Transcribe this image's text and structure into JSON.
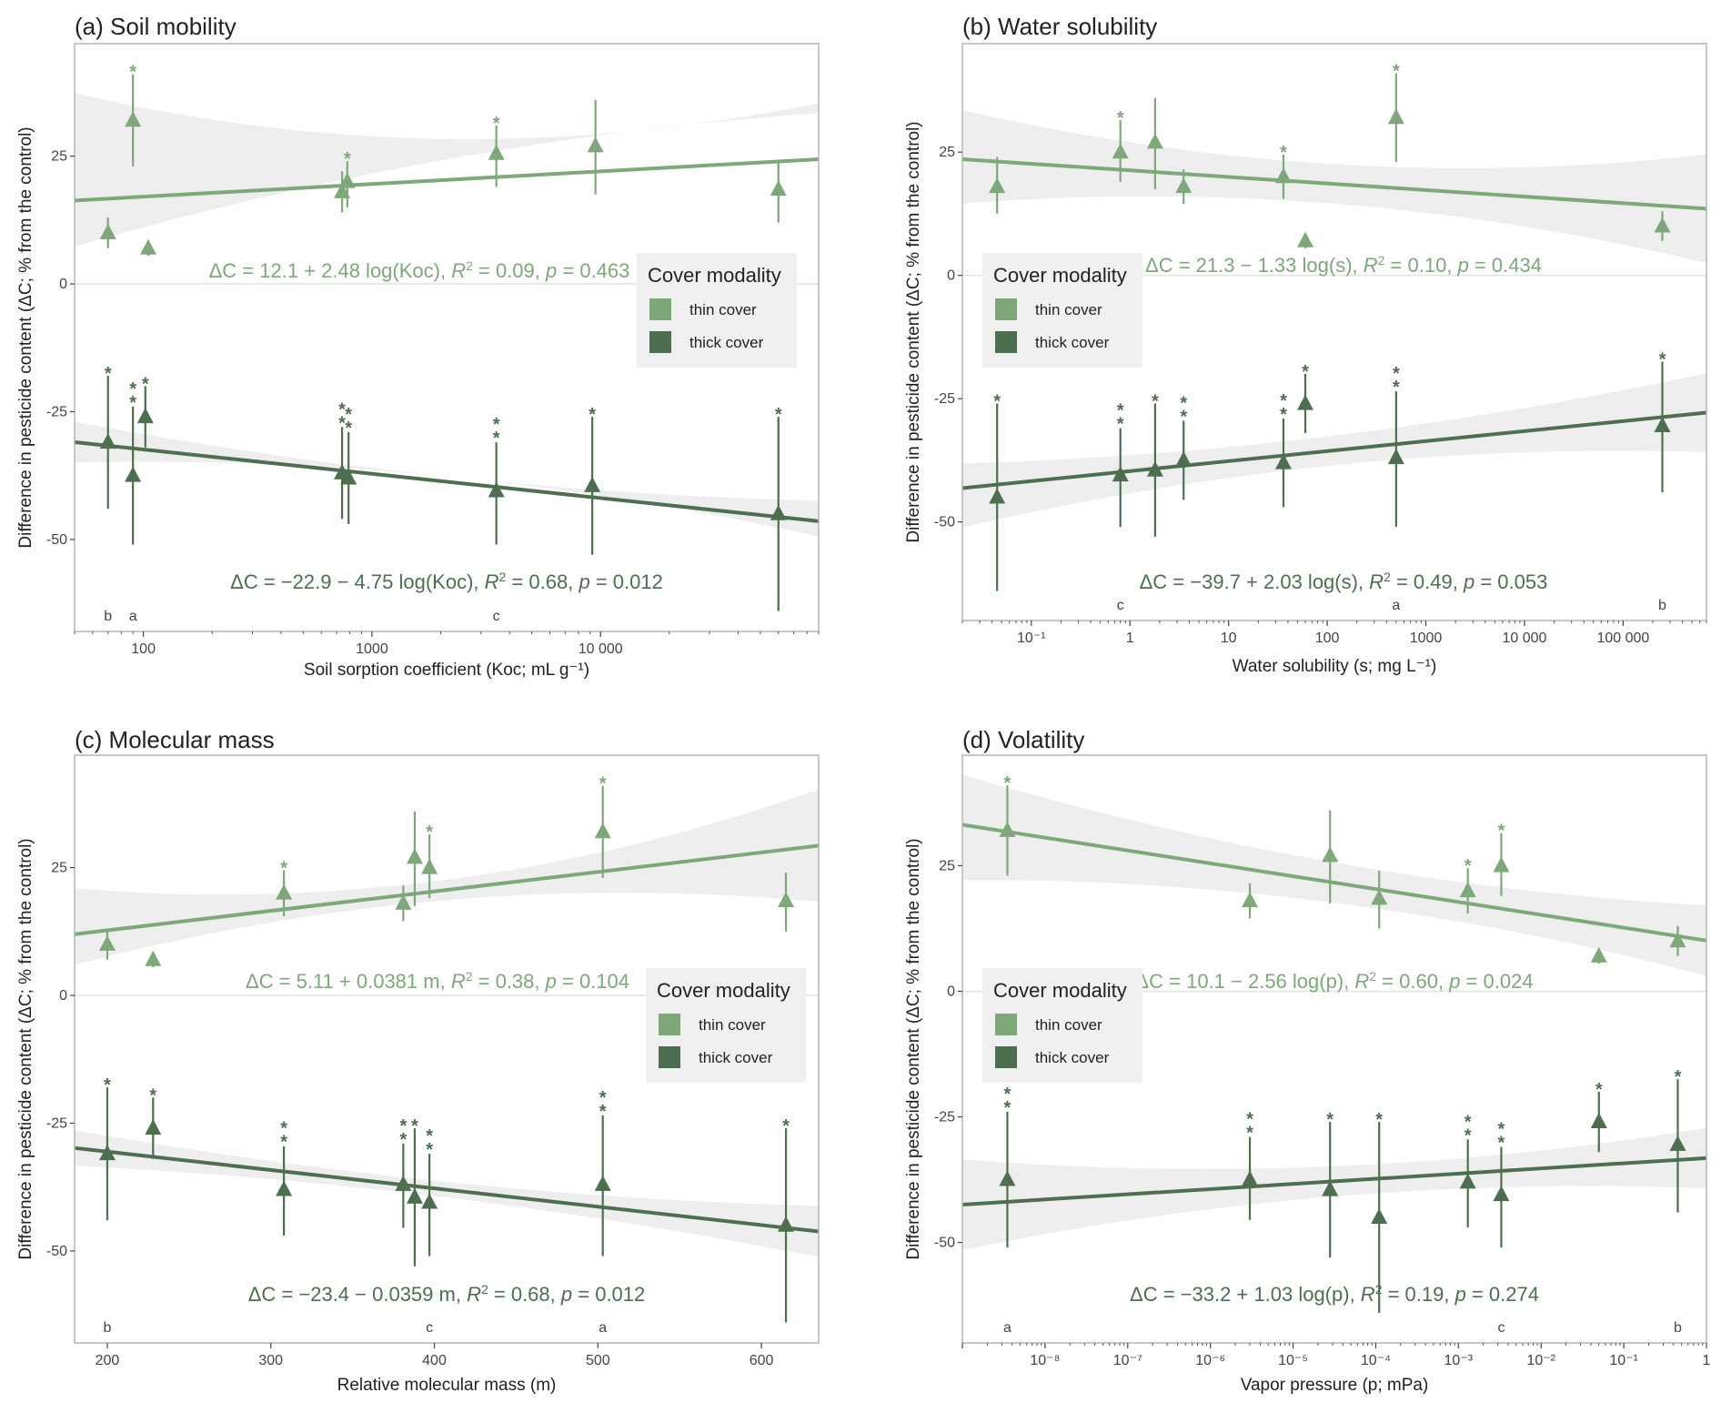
{
  "colors": {
    "thin": "#7ea87a",
    "thick": "#4e6e50",
    "band": "#ebebeb",
    "frame": "#b5b5b5",
    "zero": "#e2e2e2"
  },
  "legend": {
    "title": "Cover modality",
    "items": [
      "thin cover",
      "thick cover"
    ]
  },
  "chart_data": [
    {
      "type": "scatter",
      "title": "(a) Soil mobility",
      "xlabel": "Soil sorption coefficient (Koc; mL g⁻¹)",
      "ylabel": "Difference in pesticide content (ΔC; % from the control)",
      "xscale": "log",
      "xlim": [
        50,
        90000
      ],
      "ylim": [
        -68,
        47
      ],
      "xticks": [
        {
          "v": 100,
          "label": "100"
        },
        {
          "v": 1000,
          "label": "1000"
        },
        {
          "v": 10000,
          "label": "10 000"
        }
      ],
      "yticks": [
        {
          "v": 25,
          "label": "25"
        },
        {
          "v": 0,
          "label": "0"
        },
        {
          "v": -25,
          "label": "-25"
        },
        {
          "v": -50,
          "label": "-50"
        }
      ],
      "legend_position": "right",
      "letters": [
        {
          "x": 70,
          "label": "b"
        },
        {
          "x": 90,
          "label": "a"
        },
        {
          "x": 3500,
          "label": "c"
        }
      ],
      "series": [
        {
          "name": "thin cover",
          "equation": "ΔC = 12.1 + 2.48 log(Koc), R² = 0.09, p = 0.463",
          "fit": {
            "a": 12.1,
            "b": 2.48,
            "band_lo": [
              9,
              -4,
              -9
            ],
            "band_hi": [
              21,
              8,
              11
            ]
          },
          "points": [
            {
              "x": 70,
              "y": 10,
              "lo": 7,
              "hi": 13,
              "stars": 0
            },
            {
              "x": 90,
              "y": 32,
              "lo": 23,
              "hi": 41,
              "stars": 1
            },
            {
              "x": 105,
              "y": 7,
              "lo": 5.5,
              "hi": 8.5,
              "stars": 0
            },
            {
              "x": 740,
              "y": 18,
              "lo": 14,
              "hi": 22,
              "stars": 0
            },
            {
              "x": 780,
              "y": 20,
              "lo": 15,
              "hi": 24,
              "stars": 1
            },
            {
              "x": 3500,
              "y": 25.5,
              "lo": 19,
              "hi": 31,
              "stars": 1
            },
            {
              "x": 9500,
              "y": 27,
              "lo": 17.5,
              "hi": 36,
              "stars": 0
            },
            {
              "x": 60000,
              "y": 18.5,
              "lo": 12,
              "hi": 24,
              "stars": 0
            }
          ]
        },
        {
          "name": "thick cover",
          "equation": "ΔC = −22.9 − 4.75 log(Koc), R² = 0.68, p = 0.012",
          "fit": {
            "a": -22.9,
            "b": -4.75,
            "band_lo": [
              4,
              -1,
              3
            ],
            "band_hi": [
              4,
              1,
              4
            ]
          },
          "points": [
            {
              "x": 70,
              "y": -31,
              "lo": -44,
              "hi": -18,
              "stars": 1
            },
            {
              "x": 90,
              "y": -37.5,
              "lo": -51,
              "hi": -24,
              "stars": 2
            },
            {
              "x": 102,
              "y": -26,
              "lo": -32,
              "hi": -20,
              "stars": 1
            },
            {
              "x": 740,
              "y": -37,
              "lo": -46,
              "hi": -28,
              "stars": 2
            },
            {
              "x": 790,
              "y": -38,
              "lo": -47,
              "hi": -29,
              "stars": 2
            },
            {
              "x": 3500,
              "y": -40.5,
              "lo": -51,
              "hi": -31,
              "stars": 2
            },
            {
              "x": 9200,
              "y": -39.5,
              "lo": -53,
              "hi": -26,
              "stars": 1
            },
            {
              "x": 60000,
              "y": -45,
              "lo": -64,
              "hi": -26,
              "stars": 1
            }
          ]
        }
      ]
    },
    {
      "type": "scatter",
      "title": "(b) Water solubility",
      "xlabel": "Water solubility (s; mg L⁻¹)",
      "ylabel": "Difference in pesticide content (ΔC; % from the control)",
      "xscale": "log",
      "xlim": [
        0.02,
        700000
      ],
      "ylim": [
        -70,
        47
      ],
      "xticks": [
        {
          "v": 0.1,
          "label": "10⁻¹"
        },
        {
          "v": 1,
          "label": "1"
        },
        {
          "v": 10,
          "label": "10"
        },
        {
          "v": 100,
          "label": "100"
        },
        {
          "v": 1000,
          "label": "1000"
        },
        {
          "v": 10000,
          "label": "10 000"
        },
        {
          "v": 100000,
          "label": "100 000"
        }
      ],
      "yticks": [
        {
          "v": 25,
          "label": "25"
        },
        {
          "v": 0,
          "label": "0"
        },
        {
          "v": -25,
          "label": "-25"
        },
        {
          "v": -50,
          "label": "-50"
        }
      ],
      "legend_position": "left",
      "letters": [
        {
          "x": 0.8,
          "label": "c"
        },
        {
          "x": 500,
          "label": "a"
        },
        {
          "x": 250000,
          "label": "b"
        }
      ],
      "series": [
        {
          "name": "thin cover",
          "equation": "ΔC = 21.3 − 1.33 log(s), R² = 0.10, p = 0.434",
          "fit": {
            "a": 21.3,
            "b": -1.33,
            "band_lo": [
              9,
              4,
              11
            ],
            "band_hi": [
              10,
              4,
              11
            ]
          },
          "points": [
            {
              "x": 0.045,
              "y": 18,
              "lo": 12.5,
              "hi": 24,
              "stars": 0
            },
            {
              "x": 0.8,
              "y": 25,
              "lo": 19,
              "hi": 31.5,
              "stars": 1
            },
            {
              "x": 1.8,
              "y": 27,
              "lo": 17.5,
              "hi": 36,
              "stars": 0
            },
            {
              "x": 3.5,
              "y": 18,
              "lo": 14.5,
              "hi": 21.5,
              "stars": 0
            },
            {
              "x": 36,
              "y": 20,
              "lo": 15.5,
              "hi": 24.5,
              "stars": 1
            },
            {
              "x": 60,
              "y": 7,
              "lo": 5.5,
              "hi": 8.5,
              "stars": 0
            },
            {
              "x": 500,
              "y": 32,
              "lo": 23,
              "hi": 41,
              "stars": 1
            },
            {
              "x": 250000,
              "y": 10,
              "lo": 7,
              "hi": 13,
              "stars": 0
            }
          ]
        },
        {
          "name": "thick cover",
          "equation": "ΔC = −39.7 + 2.03 log(s), R² = 0.49, p = 0.053",
          "fit": {
            "a": -39.7,
            "b": 2.03,
            "band_lo": [
              8,
              3,
              8
            ],
            "band_hi": [
              5,
              3,
              8
            ]
          },
          "points": [
            {
              "x": 0.045,
              "y": -45,
              "lo": -64,
              "hi": -26,
              "stars": 1
            },
            {
              "x": 0.8,
              "y": -40.5,
              "lo": -51,
              "hi": -31,
              "stars": 2
            },
            {
              "x": 1.8,
              "y": -39.5,
              "lo": -53,
              "hi": -26,
              "stars": 1
            },
            {
              "x": 3.5,
              "y": -37.5,
              "lo": -45.5,
              "hi": -29.5,
              "stars": 2
            },
            {
              "x": 36,
              "y": -38,
              "lo": -47,
              "hi": -29,
              "stars": 2
            },
            {
              "x": 60,
              "y": -26,
              "lo": -32,
              "hi": -20,
              "stars": 1
            },
            {
              "x": 500,
              "y": -37,
              "lo": -51,
              "hi": -23.5,
              "stars": 2
            },
            {
              "x": 250000,
              "y": -30.5,
              "lo": -44,
              "hi": -17.5,
              "stars": 1
            }
          ]
        }
      ]
    },
    {
      "type": "scatter",
      "title": "(c) Molecular mass",
      "xlabel": "Relative molecular mass (m)",
      "ylabel": "Difference in pesticide content (ΔC; % from the control)",
      "xscale": "linear",
      "xlim": [
        180,
        635
      ],
      "ylim": [
        -68,
        47
      ],
      "xticks": [
        {
          "v": 200,
          "label": "200"
        },
        {
          "v": 300,
          "label": "300"
        },
        {
          "v": 400,
          "label": "400"
        },
        {
          "v": 500,
          "label": "500"
        },
        {
          "v": 600,
          "label": "600"
        }
      ],
      "yticks": [
        {
          "v": 25,
          "label": "25"
        },
        {
          "v": 0,
          "label": "0"
        },
        {
          "v": -25,
          "label": "-25"
        },
        {
          "v": -50,
          "label": "-50"
        }
      ],
      "legend_position": "right",
      "letters": [
        {
          "x": 200,
          "label": "b"
        },
        {
          "x": 397,
          "label": "c"
        },
        {
          "x": 503,
          "label": "a"
        }
      ],
      "series": [
        {
          "name": "thin cover",
          "equation": "ΔC = 5.11 + 0.0381 m, R² = 0.38, p = 0.104",
          "fit": {
            "a": 5.11,
            "b": 0.0381,
            "band_lo": [
              6,
              2,
              11
            ],
            "band_hi": [
              9,
              2,
              11
            ]
          },
          "points": [
            {
              "x": 200,
              "y": 10,
              "lo": 7,
              "hi": 13,
              "stars": 0
            },
            {
              "x": 228,
              "y": 7,
              "lo": 5.5,
              "hi": 8.5,
              "stars": 0
            },
            {
              "x": 308,
              "y": 20,
              "lo": 15.5,
              "hi": 24.5,
              "stars": 1
            },
            {
              "x": 381,
              "y": 18,
              "lo": 14.5,
              "hi": 21.5,
              "stars": 0
            },
            {
              "x": 388,
              "y": 27,
              "lo": 17.5,
              "hi": 36,
              "stars": 0
            },
            {
              "x": 397,
              "y": 25,
              "lo": 19,
              "hi": 31.5,
              "stars": 1
            },
            {
              "x": 503,
              "y": 32,
              "lo": 23,
              "hi": 41,
              "stars": 1
            },
            {
              "x": 615,
              "y": 18.5,
              "lo": 12.5,
              "hi": 24,
              "stars": 0
            }
          ]
        },
        {
          "name": "thick cover",
          "equation": "ΔC = −23.4 − 0.0359 m, R² = 0.68, p = 0.012",
          "fit": {
            "a": -23.4,
            "b": -0.0359,
            "band_lo": [
              3.5,
              1.5,
              5
            ],
            "band_hi": [
              3.5,
              1.5,
              5
            ]
          },
          "points": [
            {
              "x": 200,
              "y": -31,
              "lo": -44,
              "hi": -18,
              "stars": 1
            },
            {
              "x": 228,
              "y": -26,
              "lo": -32,
              "hi": -20,
              "stars": 1
            },
            {
              "x": 308,
              "y": -38,
              "lo": -47,
              "hi": -29.5,
              "stars": 2
            },
            {
              "x": 381,
              "y": -37,
              "lo": -45.5,
              "hi": -29,
              "stars": 2
            },
            {
              "x": 388,
              "y": -39.5,
              "lo": -53,
              "hi": -26,
              "stars": 1
            },
            {
              "x": 397,
              "y": -40.5,
              "lo": -51,
              "hi": -31,
              "stars": 2
            },
            {
              "x": 503,
              "y": -37,
              "lo": -51,
              "hi": -23.5,
              "stars": 2
            },
            {
              "x": 615,
              "y": -45,
              "lo": -64,
              "hi": -26,
              "stars": 1
            }
          ]
        }
      ]
    },
    {
      "type": "scatter",
      "title": "(d) Volatility",
      "xlabel": "Vapor pressure (p; mPa)",
      "ylabel": "Difference in pesticide content (ΔC; % from the control)",
      "xscale": "log",
      "xlim": [
        1e-09,
        1
      ],
      "ylim": [
        -70,
        47
      ],
      "xticks": [
        {
          "v": 1e-08,
          "label": "10⁻⁸"
        },
        {
          "v": 1e-07,
          "label": "10⁻⁷"
        },
        {
          "v": 1e-06,
          "label": "10⁻⁶"
        },
        {
          "v": 1e-05,
          "label": "10⁻⁵"
        },
        {
          "v": 0.0001,
          "label": "10⁻⁴"
        },
        {
          "v": 0.001,
          "label": "10⁻³"
        },
        {
          "v": 0.01,
          "label": "10⁻²"
        },
        {
          "v": 0.1,
          "label": "10⁻¹"
        },
        {
          "v": 1,
          "label": "1"
        }
      ],
      "yticks": [
        {
          "v": 25,
          "label": "25"
        },
        {
          "v": 0,
          "label": "0"
        },
        {
          "v": -25,
          "label": "-25"
        },
        {
          "v": -50,
          "label": "-50"
        }
      ],
      "legend_position": "left",
      "letters": [
        {
          "x": 3.5e-09,
          "label": "a"
        },
        {
          "x": 0.0033,
          "label": "c"
        },
        {
          "x": 0.45,
          "label": "b"
        }
      ],
      "series": [
        {
          "name": "thin cover",
          "equation": "ΔC = 10.1 − 2.56 log(p), R² = 0.60, p = 0.024",
          "fit": {
            "a": 10.1,
            "b": -2.56,
            "band_lo": [
              11,
              4,
              7
            ],
            "band_hi": [
              10,
              4,
              7
            ]
          },
          "points": [
            {
              "x": 3.5e-09,
              "y": 32,
              "lo": 23,
              "hi": 41,
              "stars": 1
            },
            {
              "x": 3e-06,
              "y": 18,
              "lo": 14.5,
              "hi": 21.5,
              "stars": 0
            },
            {
              "x": 2.8e-05,
              "y": 27,
              "lo": 17.5,
              "hi": 36,
              "stars": 0
            },
            {
              "x": 0.00011,
              "y": 18.5,
              "lo": 12.5,
              "hi": 24,
              "stars": 0
            },
            {
              "x": 0.0013,
              "y": 20,
              "lo": 15.5,
              "hi": 24.5,
              "stars": 1
            },
            {
              "x": 0.0033,
              "y": 25,
              "lo": 19,
              "hi": 31.5,
              "stars": 1
            },
            {
              "x": 0.05,
              "y": 7,
              "lo": 5.5,
              "hi": 8.5,
              "stars": 0
            },
            {
              "x": 0.45,
              "y": 10,
              "lo": 7,
              "hi": 13,
              "stars": 0
            }
          ]
        },
        {
          "name": "thick cover",
          "equation": "ΔC = −33.2 + 1.03 log(p), R² = 0.19, p = 0.274",
          "fit": {
            "a": -33.2,
            "b": 1.03,
            "band_lo": [
              9,
              3,
              6
            ],
            "band_hi": [
              9,
              3,
              6
            ]
          },
          "points": [
            {
              "x": 3.5e-09,
              "y": -37.5,
              "lo": -51,
              "hi": -24,
              "stars": 2
            },
            {
              "x": 3e-06,
              "y": -37.5,
              "lo": -45.5,
              "hi": -29,
              "stars": 2
            },
            {
              "x": 2.8e-05,
              "y": -39.5,
              "lo": -53,
              "hi": -26,
              "stars": 1
            },
            {
              "x": 0.00011,
              "y": -45,
              "lo": -64,
              "hi": -26,
              "stars": 1
            },
            {
              "x": 0.0013,
              "y": -38,
              "lo": -47,
              "hi": -29.5,
              "stars": 2
            },
            {
              "x": 0.0033,
              "y": -40.5,
              "lo": -51,
              "hi": -31,
              "stars": 2
            },
            {
              "x": 0.05,
              "y": -26,
              "lo": -32,
              "hi": -20,
              "stars": 1
            },
            {
              "x": 0.45,
              "y": -30.5,
              "lo": -44,
              "hi": -17.5,
              "stars": 1
            }
          ]
        }
      ]
    }
  ]
}
